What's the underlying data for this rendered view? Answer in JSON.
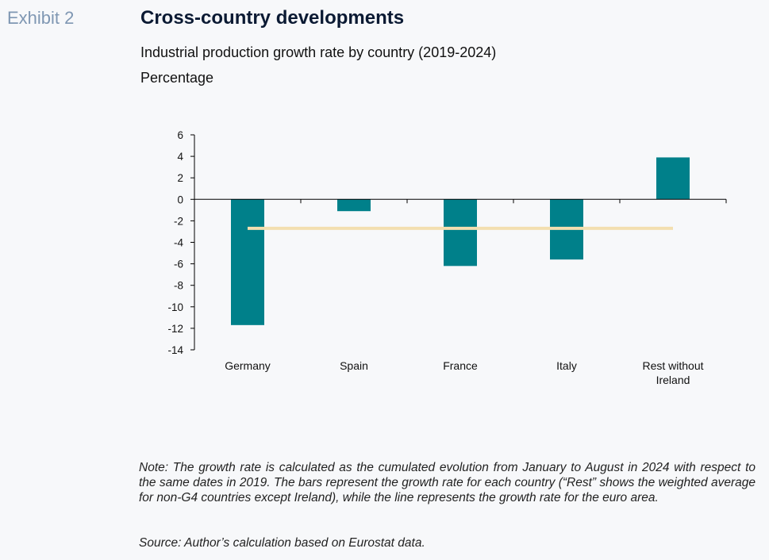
{
  "header": {
    "exhibit": "Exhibit 2",
    "title": "Cross-country developments",
    "subtitle": "Industrial production growth rate by country (2019-2024)",
    "unit": "Percentage"
  },
  "chart_data": {
    "type": "bar",
    "categories": [
      "Germany",
      "Spain",
      "France",
      "Italy",
      "Rest without Ireland"
    ],
    "series": [
      {
        "values": [
          -11.7,
          -1.1,
          -6.2,
          -5.6,
          3.9
        ]
      }
    ],
    "line_series": {
      "values": [
        -2.7,
        -2.7,
        -2.7,
        -2.7,
        -2.7
      ]
    },
    "ylim": [
      -14,
      6
    ],
    "yticks": [
      6,
      4,
      2,
      0,
      -2,
      -4,
      -6,
      -8,
      -10,
      -12,
      -14
    ],
    "grid": false,
    "legend": "none",
    "colors": {
      "bar": "#00808a",
      "line": "#f3dfb0",
      "axis": "#000000"
    }
  },
  "footer": {
    "note": "Note: The growth rate is calculated as the cumulated evolution from January to August in 2024 with respect to the same dates in 2019. The bars represent the growth rate for each country (“Rest” shows the weighted average for non-G4 countries except Ireland), while the line represents the growth rate for the euro area.",
    "source": "Source: Author’s calculation based on Eurostat data."
  }
}
